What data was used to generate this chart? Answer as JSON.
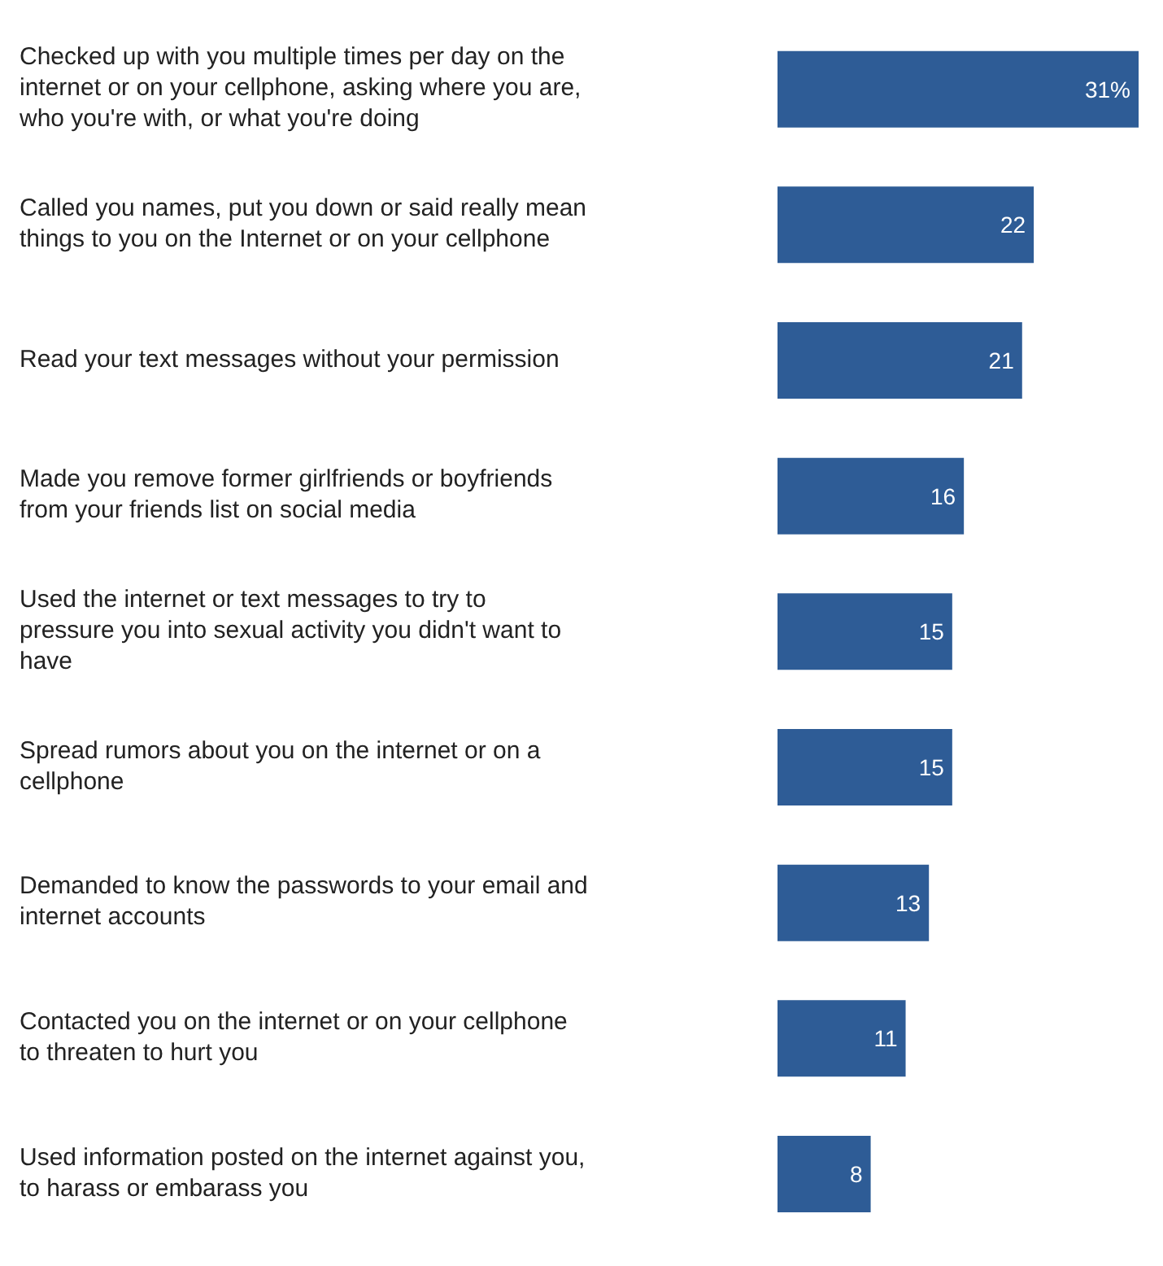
{
  "chart_data": {
    "type": "bar",
    "orientation": "horizontal",
    "categories": [
      "Checked up with you multiple times per day on the internet or on your cellphone, asking where you are, who you're with, or what you're doing",
      "Called you names, put you down or said really mean things to you on the Internet or on your cellphone",
      "Read your text messages without your permission",
      "Made you remove former girlfriends or boyfriends from your friends list on social media",
      "Used the internet or text messages to try to pressure you into sexual activity you didn't want to have",
      "Spread rumors about you on the internet or on a cellphone",
      "Demanded to know the passwords to your email and internet accounts",
      "Contacted you on the internet or on your cellphone to threaten to hurt you",
      "Used information posted on the internet against you, to harass or embarass you"
    ],
    "values": [
      31,
      22,
      21,
      16,
      15,
      15,
      13,
      11,
      8
    ],
    "value_labels": [
      "31%",
      "22",
      "21",
      "16",
      "15",
      "15",
      "13",
      "11",
      "8"
    ],
    "color": "#2e5c96"
  }
}
